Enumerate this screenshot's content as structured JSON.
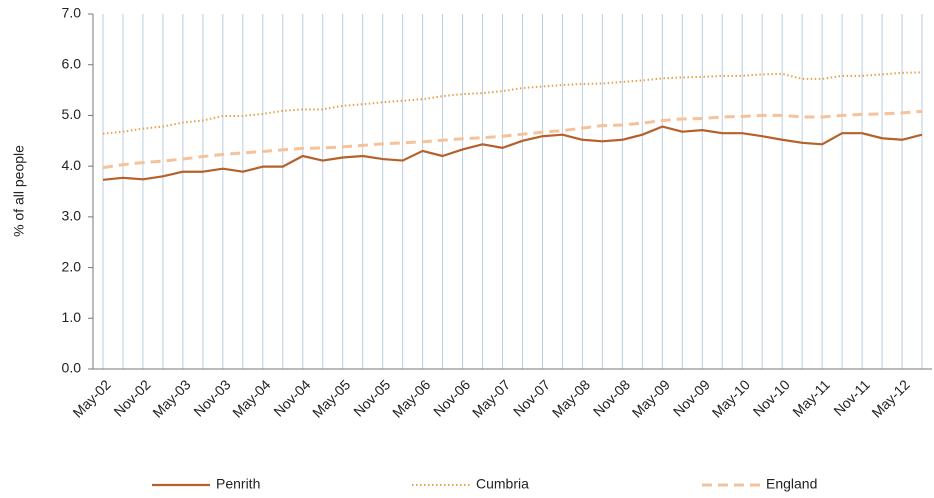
{
  "chart_data": {
    "type": "line",
    "y_label": "% of all people",
    "categories": [
      "May-02",
      null,
      "Nov-02",
      null,
      "May-03",
      null,
      "Nov-03",
      null,
      "May-04",
      null,
      "Nov-04",
      null,
      "May-05",
      null,
      "Nov-05",
      null,
      "May-06",
      null,
      "Nov-06",
      null,
      "May-07",
      null,
      "Nov-07",
      null,
      "May-08",
      null,
      "Nov-08",
      null,
      "May-09",
      null,
      "Nov-09",
      null,
      "May-10",
      null,
      "Nov-10",
      null,
      "May-11",
      null,
      "Nov-11",
      null,
      "May-12",
      null
    ],
    "series": [
      {
        "name": "Penrith",
        "color": "#b5612a",
        "dash": "solid",
        "values": [
          3.73,
          3.77,
          3.74,
          3.8,
          3.89,
          3.89,
          3.95,
          3.89,
          3.99,
          3.99,
          4.2,
          4.11,
          4.17,
          4.2,
          4.14,
          4.11,
          4.3,
          4.2,
          4.33,
          4.43,
          4.36,
          4.5,
          4.59,
          4.62,
          4.52,
          4.49,
          4.52,
          4.62,
          4.78,
          4.68,
          4.71,
          4.65,
          4.65,
          4.59,
          4.52,
          4.46,
          4.43,
          4.65,
          4.65,
          4.55,
          4.52,
          4.62
        ]
      },
      {
        "name": "Cumbria",
        "color": "#e8a04c",
        "dash": "dotted",
        "values": [
          4.64,
          4.68,
          4.74,
          4.78,
          4.86,
          4.9,
          4.99,
          4.99,
          5.03,
          5.09,
          5.12,
          5.12,
          5.19,
          5.22,
          5.26,
          5.29,
          5.32,
          5.38,
          5.42,
          5.44,
          5.48,
          5.54,
          5.57,
          5.6,
          5.62,
          5.63,
          5.66,
          5.69,
          5.73,
          5.75,
          5.76,
          5.78,
          5.78,
          5.81,
          5.82,
          5.72,
          5.72,
          5.78,
          5.78,
          5.81,
          5.84,
          5.85
        ]
      },
      {
        "name": "England",
        "color": "#f5c29a",
        "dash": "dashed",
        "values": [
          3.97,
          4.03,
          4.07,
          4.1,
          4.14,
          4.19,
          4.23,
          4.26,
          4.29,
          4.32,
          4.35,
          4.36,
          4.38,
          4.41,
          4.44,
          4.46,
          4.48,
          4.51,
          4.54,
          4.56,
          4.59,
          4.63,
          4.67,
          4.7,
          4.75,
          4.8,
          4.81,
          4.85,
          4.9,
          4.93,
          4.94,
          4.97,
          4.98,
          5.0,
          5.0,
          4.97,
          4.97,
          5.0,
          5.02,
          5.03,
          5.05,
          5.08
        ]
      }
    ],
    "ylim": [
      0,
      7
    ],
    "yticks": [
      {
        "value": 0,
        "label": "0.0"
      },
      {
        "value": 1,
        "label": "1.0"
      },
      {
        "value": 2,
        "label": "2.0"
      },
      {
        "value": 3,
        "label": "3.0"
      },
      {
        "value": 4,
        "label": "4.0"
      },
      {
        "value": 5,
        "label": "5.0"
      },
      {
        "value": 6,
        "label": "6.0"
      },
      {
        "value": 7,
        "label": "7.0"
      }
    ],
    "vertical_grid": true,
    "grid_color": "#b9cde5",
    "legend": "bottom"
  }
}
